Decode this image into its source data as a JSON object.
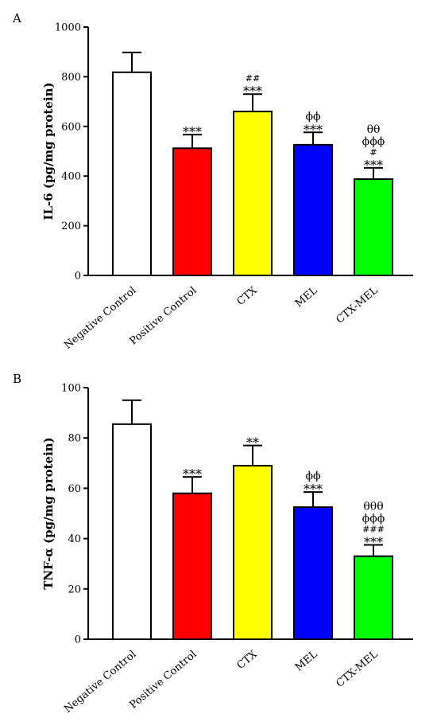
{
  "chart_data": [
    {
      "type": "bar",
      "panel_label": "A",
      "ylabel": "IL-6 (pg/mg protein)",
      "ylim": [
        0,
        1000
      ],
      "yticks": [
        0,
        200,
        400,
        600,
        800,
        1000
      ],
      "categories": [
        "Negative Control",
        "Positive Control",
        "CTX",
        "MEL",
        "CTX-MEL"
      ],
      "values": [
        818,
        512,
        660,
        526,
        388
      ],
      "errors": [
        80,
        55,
        70,
        50,
        45
      ],
      "colors": [
        "#ffffff",
        "#ff0000",
        "#ffff00",
        "#0000ff",
        "#00ff00"
      ],
      "annotations": [
        [],
        [
          "***"
        ],
        [
          "***",
          "##"
        ],
        [
          "***",
          "ϕϕ"
        ],
        [
          "***",
          "#",
          "ϕϕϕ",
          "θθ"
        ]
      ],
      "grid": false
    },
    {
      "type": "bar",
      "panel_label": "B",
      "ylabel": "TNF-α (pg/mg protein)",
      "ylim": [
        0,
        100
      ],
      "yticks": [
        0,
        20,
        40,
        60,
        80,
        100
      ],
      "categories": [
        "Negative Control",
        "Positive Control",
        "CTX",
        "MEL",
        "CTX-MEL"
      ],
      "values": [
        85.5,
        58,
        69,
        52.5,
        33
      ],
      "errors": [
        9.5,
        6.5,
        8,
        6,
        4.5
      ],
      "colors": [
        "#ffffff",
        "#ff0000",
        "#ffff00",
        "#0000ff",
        "#00ff00"
      ],
      "annotations": [
        [],
        [
          "***"
        ],
        [
          "**"
        ],
        [
          "***",
          "ϕϕ"
        ],
        [
          "***",
          "###",
          "ϕϕϕ",
          "θθθ"
        ]
      ],
      "grid": false
    }
  ]
}
